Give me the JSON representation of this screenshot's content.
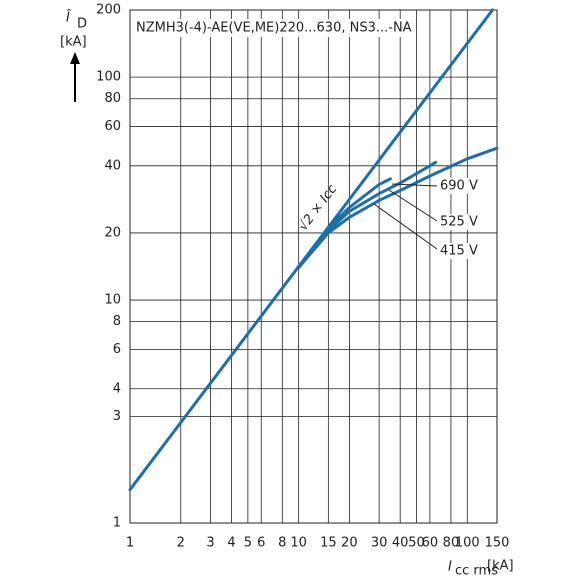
{
  "chart_data": {
    "type": "line",
    "title": "NZMH3(-4)-AE(VE,ME)220...630, NS3...-NA",
    "ylabel": "Î",
    "ylabel_sub": "D",
    "ylabel_unit": "[kA]",
    "xlabel": "I",
    "xlabel_sub": "cc rms",
    "xlabel_unit": "[kA]",
    "log_x": true,
    "log_y": true,
    "grid": true,
    "xlim": [
      1,
      150
    ],
    "ylim": [
      1,
      200
    ],
    "xticks": [
      1,
      2,
      3,
      4,
      5,
      6,
      8,
      10,
      15,
      20,
      30,
      40,
      50,
      60,
      80,
      100,
      150
    ],
    "yticks": [
      1,
      3,
      4,
      6,
      8,
      10,
      20,
      40,
      60,
      80,
      100,
      200
    ],
    "series": [
      {
        "name": "√2 × Icc",
        "color": "#1f6ea8",
        "x": [
          1,
          141
        ],
        "values": [
          1.41,
          200
        ]
      },
      {
        "name": "415 V",
        "color": "#1f6ea8",
        "x": [
          10,
          15,
          20,
          30,
          40,
          60,
          100,
          150
        ],
        "values": [
          14,
          20,
          23.5,
          28,
          31,
          36,
          43,
          48
        ]
      },
      {
        "name": "525 V",
        "color": "#1f6ea8",
        "x": [
          10,
          15,
          20,
          30,
          40,
          60,
          65
        ],
        "values": [
          14,
          20.5,
          25,
          30,
          33.5,
          40,
          41.5
        ]
      },
      {
        "name": "690 V",
        "color": "#1f6ea8",
        "x": [
          10,
          15,
          20,
          30,
          35
        ],
        "values": [
          14,
          21,
          26,
          33,
          35
        ]
      }
    ]
  }
}
